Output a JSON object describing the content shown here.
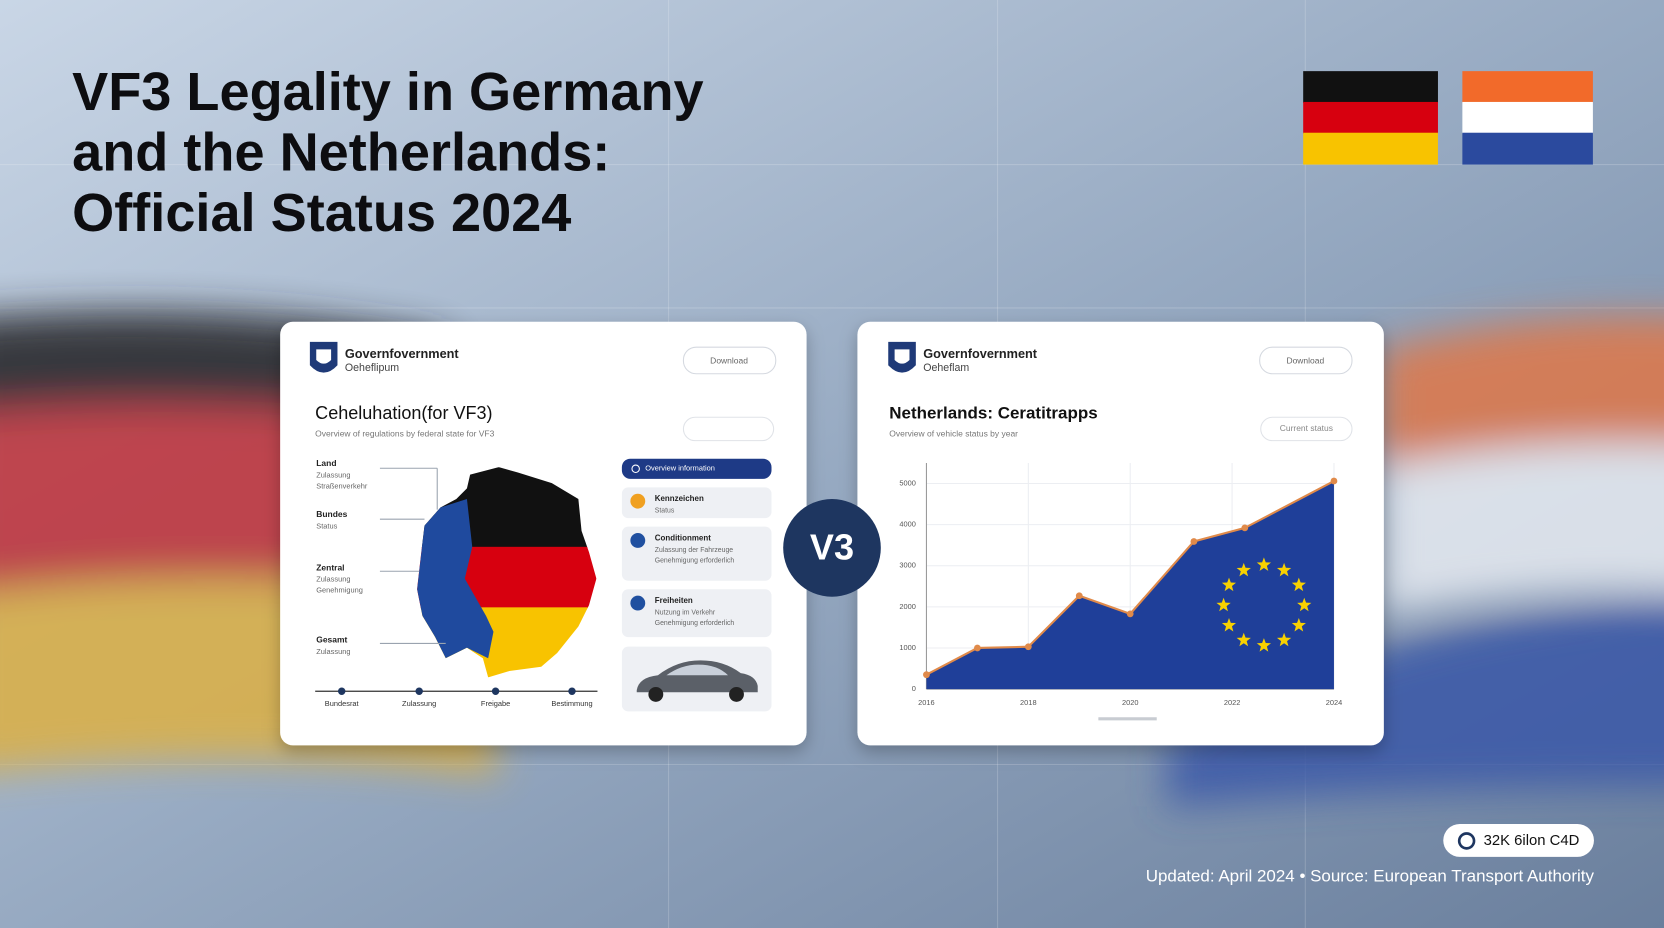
{
  "header": {
    "title_lines": [
      "VF3 Legality in Germany",
      "and the Netherlands:",
      "Official Status 2024"
    ]
  },
  "center_badge": "V3",
  "left_panel": {
    "org_name": "Governfovernment",
    "org_sub": "Oeheflipum",
    "button": "Download",
    "heading": "Ceheluhation(for VF3)",
    "subheading": "Overview of regulations by federal state for VF3",
    "legend": [
      {
        "title": "Land",
        "lines": [
          "Zulassung",
          "Straßenverkehr"
        ]
      },
      {
        "title": "Bundes",
        "lines": [
          "Status"
        ]
      },
      {
        "title": "Zentral",
        "lines": [
          "Zulassung",
          "Genehmigung"
        ]
      },
      {
        "title": "Gesamt",
        "lines": [
          "Zulassung"
        ]
      }
    ],
    "list": [
      {
        "title": "Overview information",
        "lines": []
      },
      {
        "title": "Kennzeichen",
        "lines": [
          "Status"
        ]
      },
      {
        "title": "Conditionment",
        "lines": [
          "Zulassung der Fahrzeuge",
          "Genehmigung erforderlich"
        ]
      },
      {
        "title": "Freiheiten",
        "lines": [
          "Nutzung im Verkehr",
          "Genehmigung erforderlich"
        ]
      }
    ],
    "timeline": [
      "Bundesrat",
      "Zulassung",
      "Freigabe",
      "Bestimmung"
    ]
  },
  "right_panel": {
    "org_name": "Governfovernment",
    "org_sub": "Oeheflam",
    "button": "Download",
    "heading": "Netherlands: Ceratitrapps",
    "subheading": "Overview of vehicle status by year",
    "button2": "Current status"
  },
  "chart_data": {
    "type": "area",
    "x": [
      2016,
      2017,
      2018,
      2019,
      2020,
      2021.25,
      2022.25,
      2024
    ],
    "values": [
      350,
      1000,
      1030,
      2270,
      1830,
      3590,
      3920,
      5060
    ],
    "color": "#1f3f99",
    "line_color": "#e08a4a",
    "xlim": [
      2016,
      2024
    ],
    "xticks": [
      2016,
      2018,
      2020,
      2022,
      2024
    ],
    "ylim": [
      0,
      5500
    ],
    "yticks": [
      0,
      1000,
      2000,
      3000,
      4000,
      5000
    ],
    "grid": true
  },
  "badge": "32K 6ilon C4D",
  "footer": "Updated: April 2024 • Source: European Transport Authority"
}
